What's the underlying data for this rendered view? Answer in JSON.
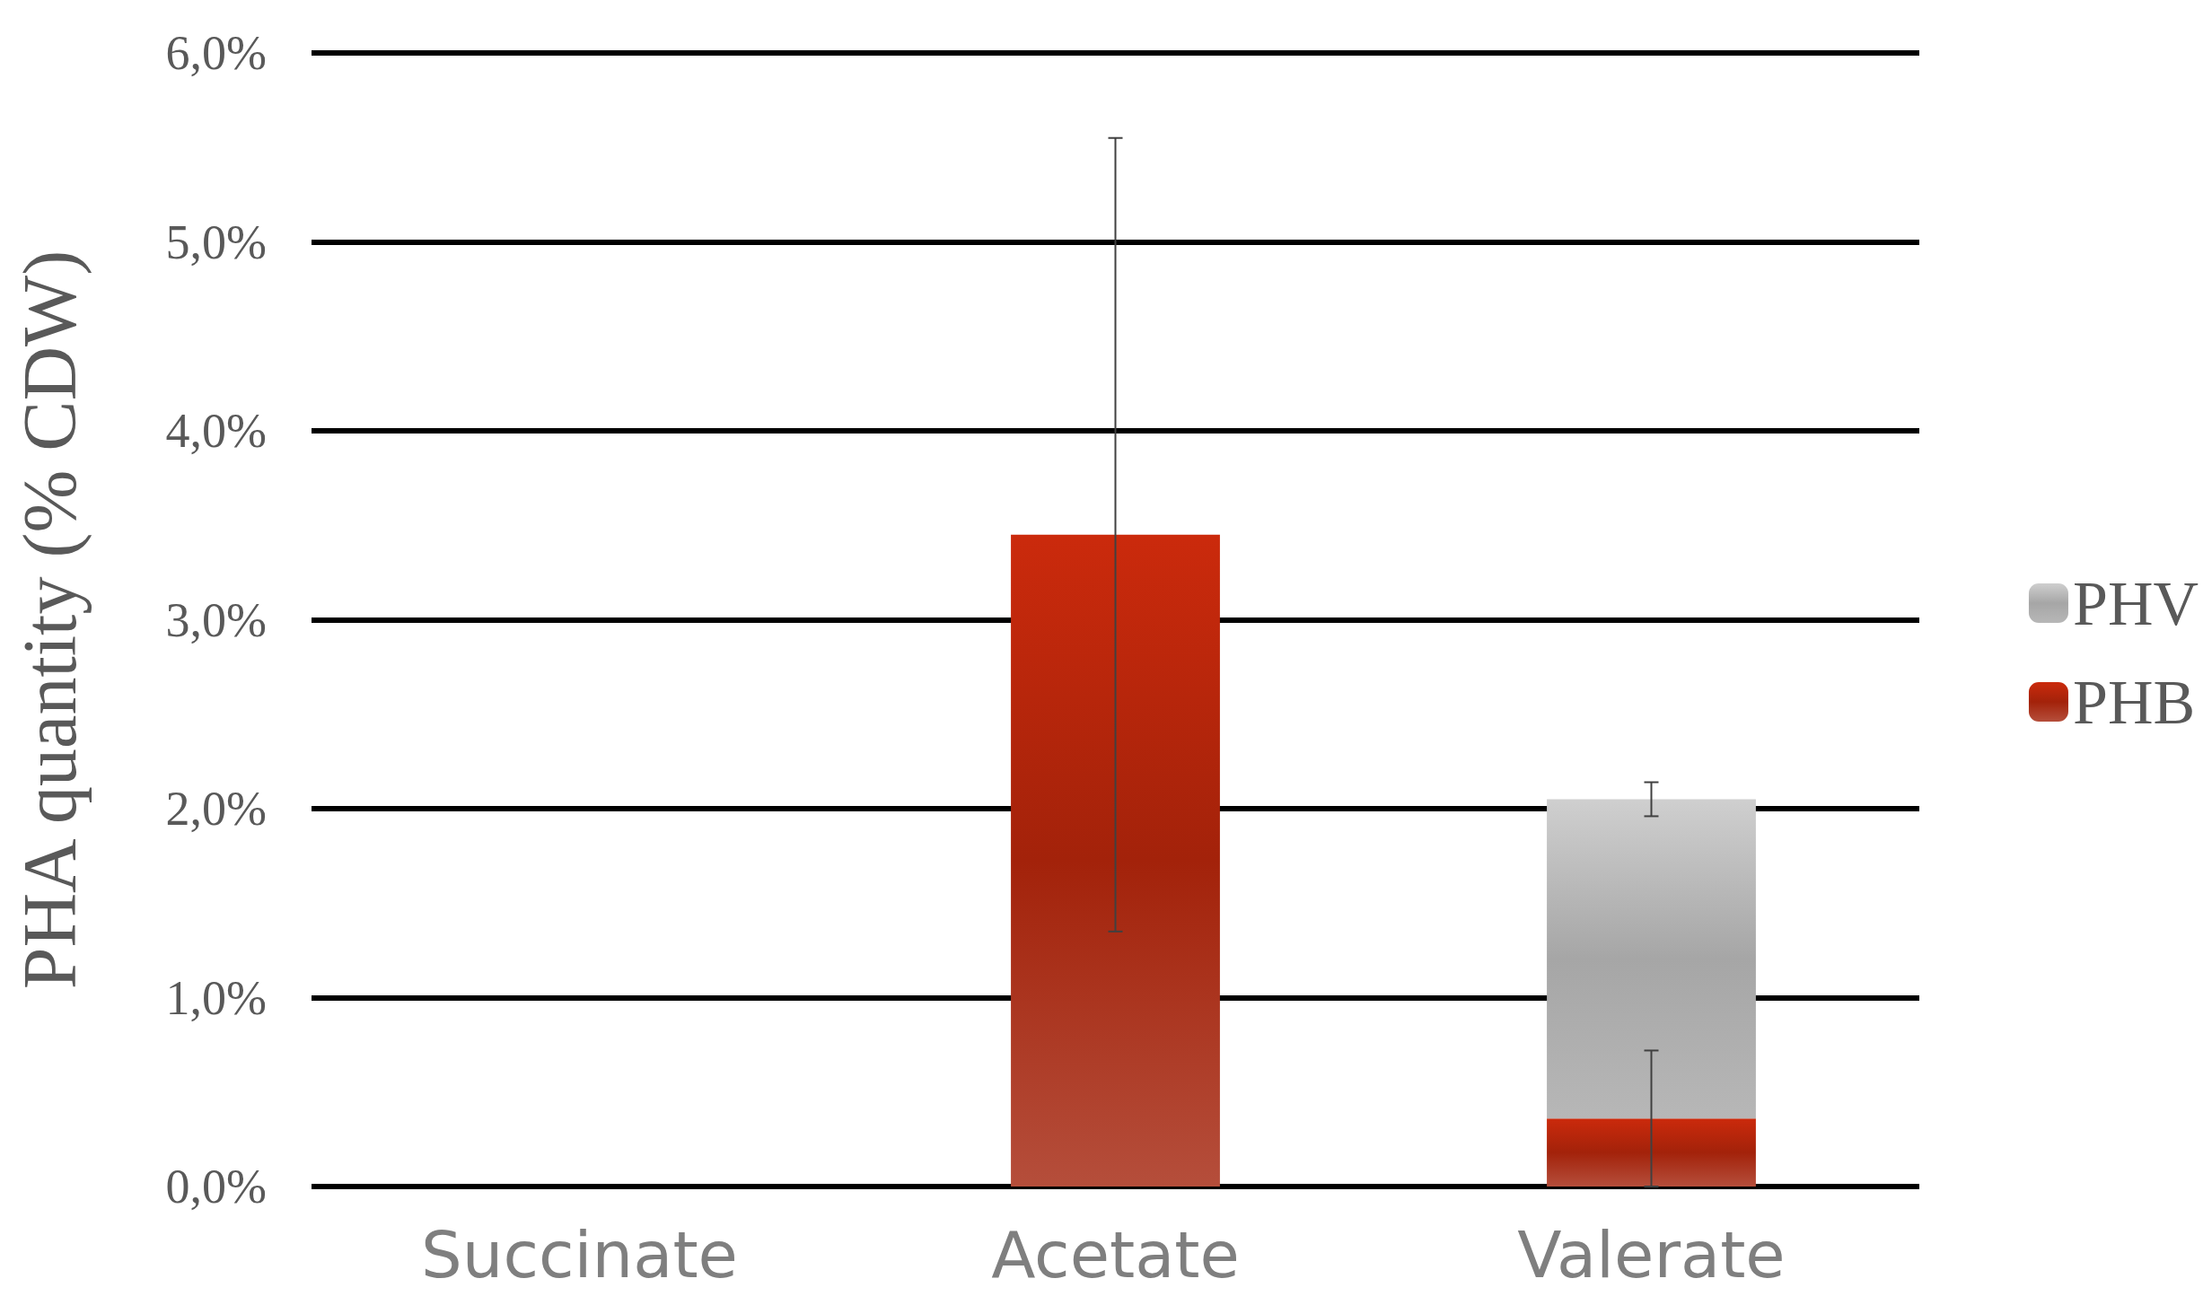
{
  "chart_data": {
    "type": "bar",
    "stacked": true,
    "categories": [
      "Succinate",
      "Acetate",
      "Valerate"
    ],
    "ylabel": "PHA quantity (% CDW)",
    "series": [
      {
        "name": "PHB",
        "color": "#a3220a",
        "values": [
          null,
          3.45,
          0.36
        ],
        "errors": [
          null,
          2.1,
          0.36
        ]
      },
      {
        "name": "PHV",
        "color": "#a6a6a6",
        "values": [
          null,
          null,
          1.69
        ],
        "errors": [
          null,
          null,
          0.09
        ]
      }
    ],
    "ylim": [
      0,
      6
    ],
    "yticks": [
      {
        "value": 0,
        "label": "0,0%"
      },
      {
        "value": 1,
        "label": "1,0%"
      },
      {
        "value": 2,
        "label": "2,0%"
      },
      {
        "value": 3,
        "label": "3,0%"
      },
      {
        "value": 4,
        "label": "4,0%"
      },
      {
        "value": 5,
        "label": "5,0%"
      },
      {
        "value": 6,
        "label": "6,0%"
      }
    ],
    "grid": "y",
    "legend": "right"
  }
}
